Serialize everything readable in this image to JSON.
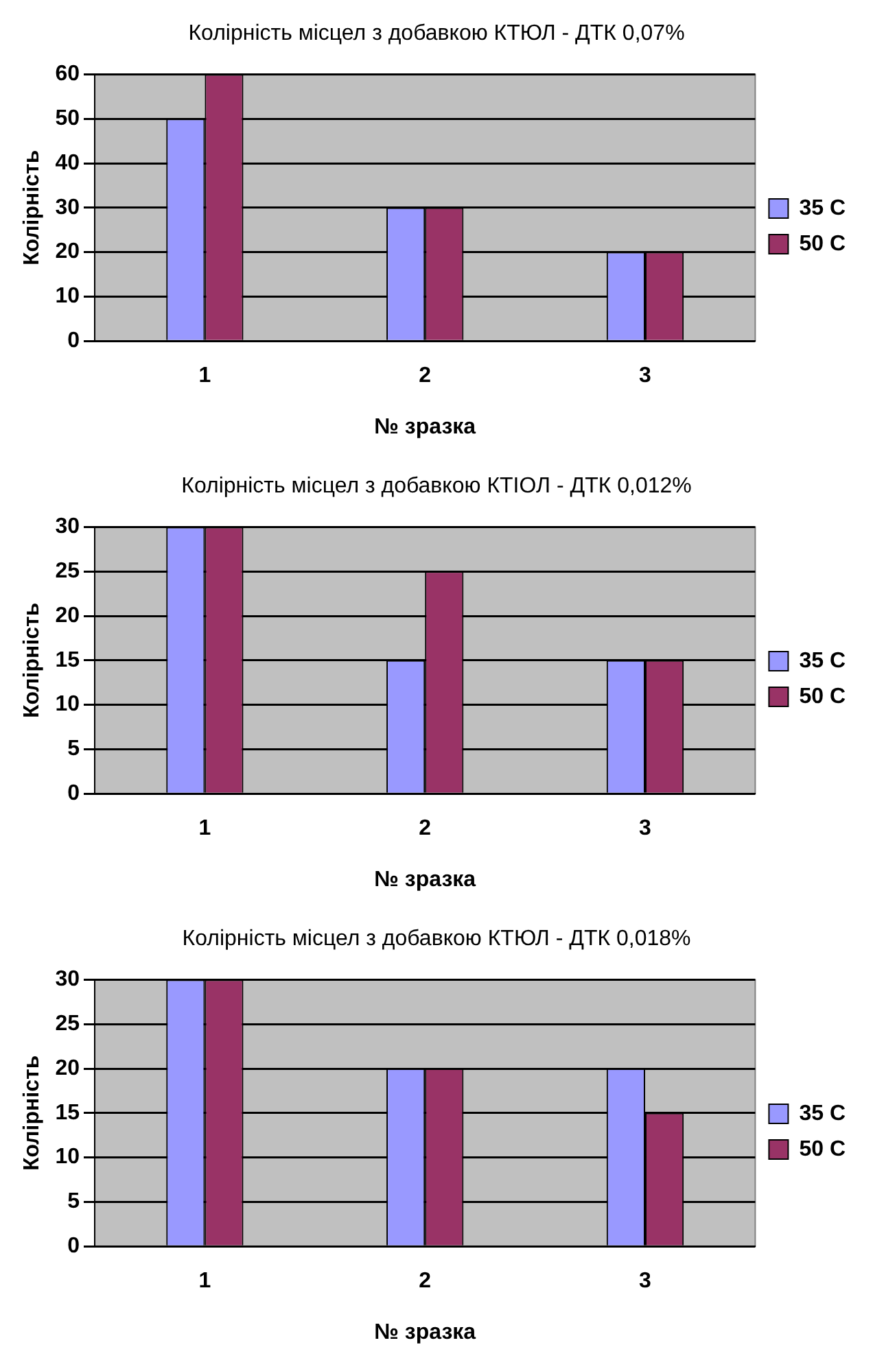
{
  "chart_data": [
    {
      "type": "bar",
      "title": "Колірність місцел з добавкою КТЮЛ - ДТК 0,07%",
      "xlabel": "№ зразка",
      "ylabel": "Колірність",
      "categories": [
        "1",
        "2",
        "3"
      ],
      "series": [
        {
          "name": "35 C",
          "color": "#9999ff",
          "values": [
            50,
            30,
            20
          ]
        },
        {
          "name": "50 C",
          "color": "#993366",
          "values": [
            60,
            30,
            20
          ]
        }
      ],
      "ylim": [
        0,
        60
      ],
      "yticks": [
        0,
        10,
        20,
        30,
        40,
        50,
        60
      ],
      "grid": "y",
      "legend": "right"
    },
    {
      "type": "bar",
      "title": "Колірність місцел з добавкою КТІОЛ - ДТК 0,012%",
      "xlabel": "№ зразка",
      "ylabel": "Колірність",
      "categories": [
        "1",
        "2",
        "3"
      ],
      "series": [
        {
          "name": "35 C",
          "color": "#9999ff",
          "values": [
            30,
            15,
            15
          ]
        },
        {
          "name": "50 C",
          "color": "#993366",
          "values": [
            30,
            25,
            15
          ]
        }
      ],
      "ylim": [
        0,
        30
      ],
      "yticks": [
        0,
        5,
        10,
        15,
        20,
        25,
        30
      ],
      "grid": "y",
      "legend": "right"
    },
    {
      "type": "bar",
      "title": "Колірність місцел з добавкою КТЮЛ - ДТК 0,018%",
      "xlabel": "№ зразка",
      "ylabel": "Колірність",
      "categories": [
        "1",
        "2",
        "3"
      ],
      "series": [
        {
          "name": "35 C",
          "color": "#9999ff",
          "values": [
            30,
            20,
            20
          ]
        },
        {
          "name": "50 C",
          "color": "#993366",
          "values": [
            30,
            20,
            15
          ]
        }
      ],
      "ylim": [
        0,
        30
      ],
      "yticks": [
        0,
        5,
        10,
        15,
        20,
        25,
        30
      ],
      "grid": "y",
      "legend": "right"
    }
  ]
}
